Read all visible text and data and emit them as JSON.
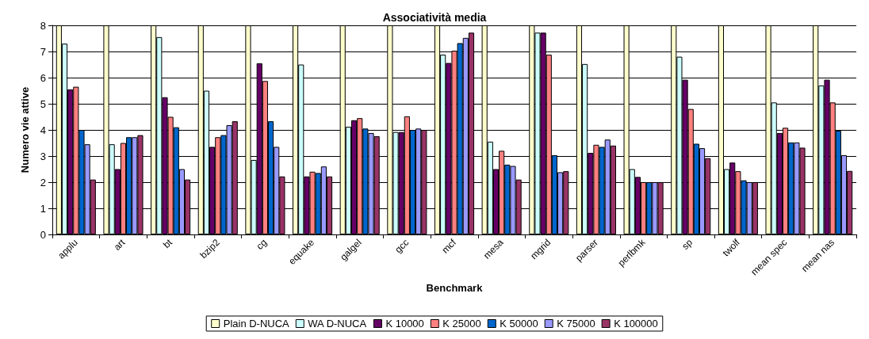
{
  "chart_data": {
    "type": "bar",
    "title": "Associatività media",
    "xlabel": "Benchmark",
    "ylabel": "Numero vie attive",
    "categories": [
      "applu",
      "art",
      "bt",
      "bzip2",
      "cg",
      "equake",
      "galgel",
      "gcc",
      "mcf",
      "mesa",
      "mgrid",
      "parser",
      "perlbmk",
      "sp",
      "twolf",
      "mean spec",
      "mean nas"
    ],
    "series": [
      {
        "name": "Plain D-NUCA",
        "color": "#ffffcc",
        "values": [
          8,
          8,
          8,
          8,
          8,
          8,
          8,
          8,
          8,
          8,
          8,
          8,
          8,
          8,
          8,
          8,
          8
        ]
      },
      {
        "name": "WA D-NUCA",
        "color": "#ccffff",
        "values": [
          7.3,
          3.45,
          7.55,
          5.5,
          2.85,
          6.5,
          4.12,
          3.92,
          6.88,
          3.55,
          7.72,
          6.52,
          2.5,
          6.8,
          2.5,
          5.05,
          5.7
        ]
      },
      {
        "name": "K 10000",
        "color": "#660066",
        "values": [
          5.55,
          2.5,
          5.25,
          3.35,
          6.55,
          2.22,
          4.37,
          3.92,
          6.56,
          2.5,
          7.72,
          3.12,
          2.2,
          5.92,
          2.75,
          3.88,
          5.92
        ]
      },
      {
        "name": "K 25000",
        "color": "#ff8080",
        "values": [
          5.65,
          3.5,
          4.5,
          3.72,
          5.87,
          2.4,
          4.45,
          4.52,
          7.03,
          3.2,
          6.88,
          3.43,
          2.0,
          4.8,
          2.42,
          4.08,
          5.05
        ]
      },
      {
        "name": "K 50000",
        "color": "#0066cc",
        "values": [
          4.0,
          3.72,
          4.1,
          3.8,
          4.33,
          2.35,
          4.05,
          4.0,
          7.32,
          2.67,
          3.03,
          3.35,
          2.0,
          3.47,
          2.07,
          3.52,
          3.97
        ]
      },
      {
        "name": "K 75000",
        "color": "#9999ff",
        "values": [
          3.45,
          3.72,
          2.5,
          4.18,
          3.35,
          2.6,
          3.88,
          4.05,
          7.52,
          2.62,
          2.38,
          3.63,
          2.0,
          3.3,
          2.0,
          3.52,
          3.03
        ]
      },
      {
        "name": "K 100000",
        "color": "#993366",
        "values": [
          2.1,
          3.8,
          2.1,
          4.33,
          2.22,
          2.22,
          3.76,
          4.0,
          7.72,
          2.1,
          2.42,
          3.4,
          2.0,
          2.92,
          2.0,
          3.32,
          2.43
        ]
      }
    ],
    "ylim": [
      0,
      8
    ],
    "yticks": [
      0,
      1,
      2,
      3,
      4,
      5,
      6,
      7,
      8
    ],
    "grid": "y",
    "legend": "bottom"
  }
}
